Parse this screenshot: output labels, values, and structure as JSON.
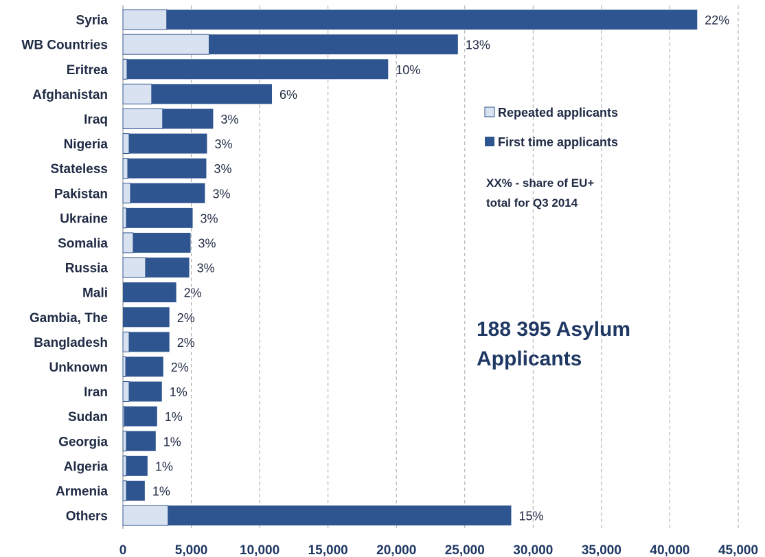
{
  "chart_data": {
    "type": "bar",
    "orientation": "horizontal",
    "stacked": true,
    "categories": [
      "Syria",
      "WB Countries",
      "Eritrea",
      "Afghanistan",
      "Iraq",
      "Nigeria",
      "Stateless",
      "Pakistan",
      "Ukraine",
      "Somalia",
      "Russia",
      "Mali",
      "Gambia, The",
      "Bangladesh",
      "Unknown",
      "Iran",
      "Sudan",
      "Georgia",
      "Algeria",
      "Armenia",
      "Others"
    ],
    "series": [
      {
        "name": "Repeated applicants",
        "color": "#D9E2F0",
        "values": [
          3200,
          6300,
          300,
          2100,
          2900,
          450,
          350,
          550,
          250,
          750,
          1650,
          0,
          0,
          450,
          200,
          450,
          100,
          250,
          250,
          250,
          3300
        ]
      },
      {
        "name": "First time applicants",
        "color": "#2E5590",
        "values": [
          38800,
          18200,
          19100,
          8800,
          3700,
          5700,
          5750,
          5450,
          4850,
          4200,
          3200,
          3900,
          3400,
          2950,
          2750,
          2400,
          2400,
          2150,
          1550,
          1350,
          25100
        ]
      }
    ],
    "share_labels": [
      "22%",
      "13%",
      "10%",
      "6%",
      "3%",
      "3%",
      "3%",
      "3%",
      "3%",
      "3%",
      "3%",
      "2%",
      "2%",
      "2%",
      "2%",
      "1%",
      "1%",
      "1%",
      "1%",
      "1%",
      "15%"
    ],
    "xlim": [
      0,
      45000
    ],
    "x_ticks": [
      0,
      5000,
      10000,
      15000,
      20000,
      25000,
      30000,
      35000,
      40000,
      45000
    ],
    "x_tick_labels": [
      "0",
      "5,000",
      "10,000",
      "15,000",
      "20,000",
      "25,000",
      "30,000",
      "35,000",
      "40,000",
      "45,000"
    ],
    "grid": "vertical dashed",
    "legend": {
      "placement": "right",
      "items": [
        "Repeated applicants",
        "First time applicants"
      ]
    },
    "note_lines": [
      "XX% - share of EU+",
      "total for Q3 2014"
    ],
    "headline_lines": [
      "188 395 Asylum",
      "Applicants"
    ]
  },
  "colors": {
    "first_time": "#2E5590",
    "repeated": "#D9E2F0",
    "text": "#1F2A44",
    "headline": "#1F3864",
    "grid": "#A6A6A6"
  }
}
